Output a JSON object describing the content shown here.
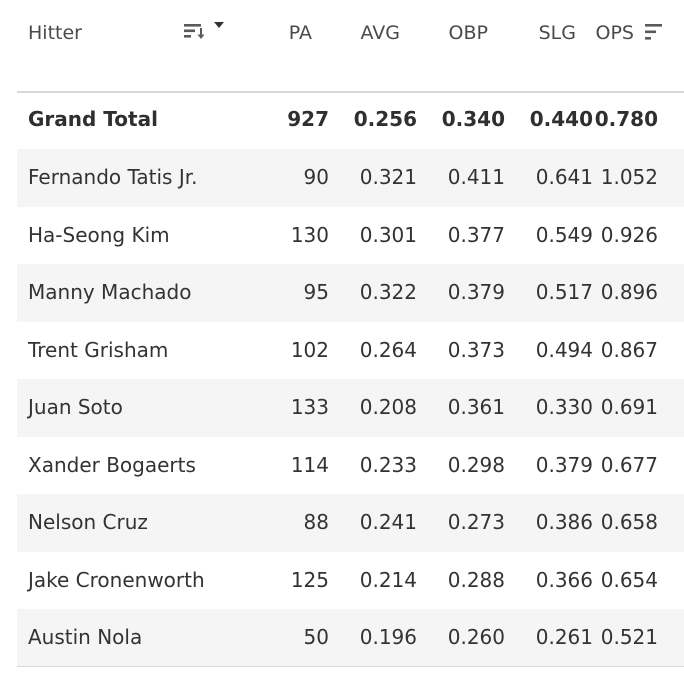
{
  "header": {
    "hitter": "Hitter",
    "pa": "PA",
    "avg": "AVG",
    "obp": "OBP",
    "slg": "SLG",
    "ops": "OPS"
  },
  "total": {
    "name": "Grand Total",
    "pa": "927",
    "avg": "0.256",
    "obp": "0.340",
    "slg": "0.440",
    "ops": "0.780"
  },
  "rows": [
    {
      "name": "Fernando Tatis Jr.",
      "pa": "90",
      "avg": "0.321",
      "obp": "0.411",
      "slg": "0.641",
      "ops": "1.052"
    },
    {
      "name": "Ha-Seong Kim",
      "pa": "130",
      "avg": "0.301",
      "obp": "0.377",
      "slg": "0.549",
      "ops": "0.926"
    },
    {
      "name": "Manny Machado",
      "pa": "95",
      "avg": "0.322",
      "obp": "0.379",
      "slg": "0.517",
      "ops": "0.896"
    },
    {
      "name": "Trent Grisham",
      "pa": "102",
      "avg": "0.264",
      "obp": "0.373",
      "slg": "0.494",
      "ops": "0.867"
    },
    {
      "name": "Juan Soto",
      "pa": "133",
      "avg": "0.208",
      "obp": "0.361",
      "slg": "0.330",
      "ops": "0.691"
    },
    {
      "name": "Xander Bogaerts",
      "pa": "114",
      "avg": "0.233",
      "obp": "0.298",
      "slg": "0.379",
      "ops": "0.677"
    },
    {
      "name": "Nelson Cruz",
      "pa": "88",
      "avg": "0.241",
      "obp": "0.273",
      "slg": "0.386",
      "ops": "0.658"
    },
    {
      "name": "Jake Cronenworth",
      "pa": "125",
      "avg": "0.214",
      "obp": "0.288",
      "slg": "0.366",
      "ops": "0.654"
    },
    {
      "name": "Austin Nola",
      "pa": "50",
      "avg": "0.196",
      "obp": "0.260",
      "slg": "0.261",
      "ops": "0.521"
    }
  ],
  "icons": {
    "hitter_sort": "sort-descending-dropdown-icon",
    "ops_sort": "sort-descending-icon"
  }
}
